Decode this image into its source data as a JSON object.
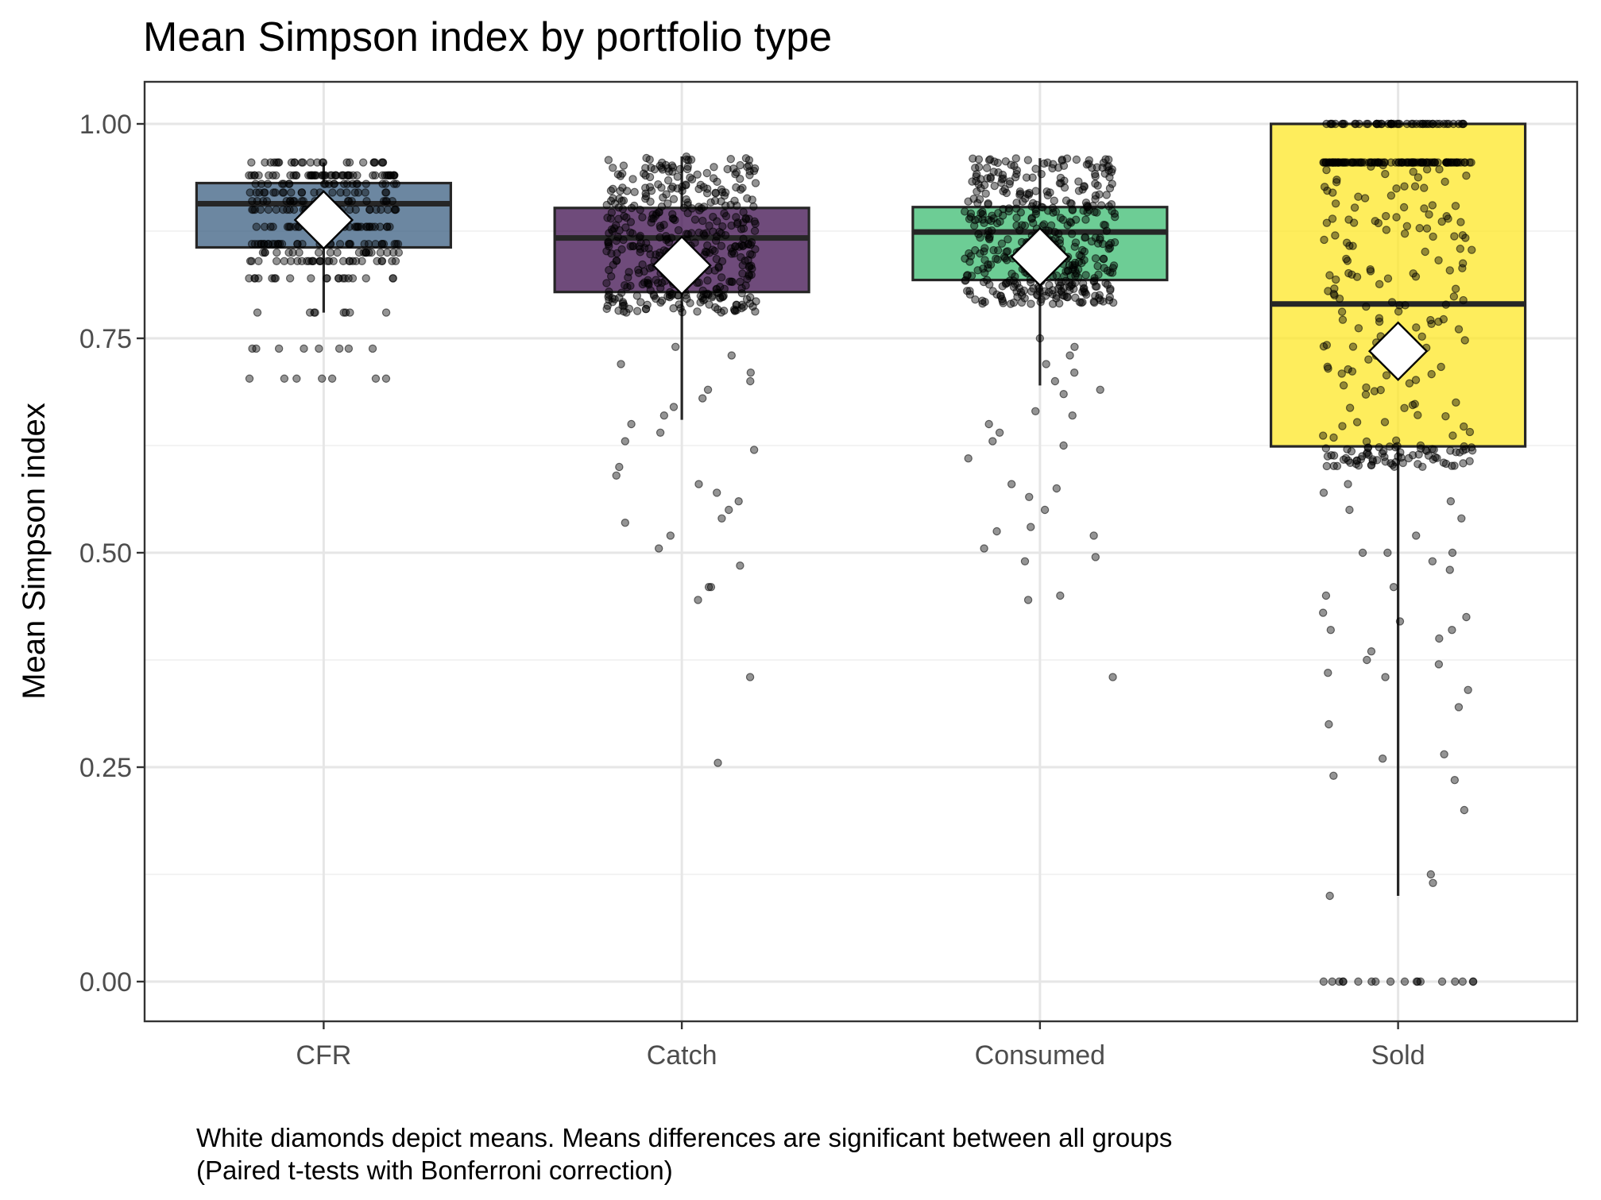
{
  "chart_data": {
    "type": "box",
    "title": "Mean Simpson index by portfolio type",
    "xlabel": "",
    "ylabel": "Mean Simpson index",
    "ylim": [
      -0.05,
      1.05
    ],
    "yticks": [
      0.0,
      0.25,
      0.5,
      0.75,
      1.0
    ],
    "ytick_labels": [
      "0.00",
      "0.25",
      "0.50",
      "0.75",
      "1.00"
    ],
    "categories": [
      "CFR",
      "Catch",
      "Consumed",
      "Sold"
    ],
    "grid": true,
    "legend": "none",
    "caption": [
      "White diamonds depict means. Means differences are significant between all groups",
      "(Paired t-tests with Bonferroni correction)"
    ],
    "boxes": [
      {
        "category": "CFR",
        "color": "#3b5f82",
        "q1": 0.856,
        "median": 0.907,
        "q3": 0.931,
        "whisker_low": 0.78,
        "whisker_high": 0.955,
        "mean": 0.888
      },
      {
        "category": "Catch",
        "color": "#3f0f4f",
        "q1": 0.804,
        "median": 0.867,
        "q3": 0.902,
        "whisker_low": 0.655,
        "whisker_high": 0.962,
        "mean": 0.835
      },
      {
        "category": "Consumed",
        "color": "#3cbc72",
        "q1": 0.818,
        "median": 0.874,
        "q3": 0.903,
        "whisker_low": 0.695,
        "whisker_high": 0.96,
        "mean": 0.845
      },
      {
        "category": "Sold",
        "color": "#fde725",
        "q1": 0.624,
        "median": 0.79,
        "q3": 1.0,
        "whisker_low": 0.1,
        "whisker_high": 1.0,
        "mean": 0.735
      }
    ],
    "points": [
      {
        "category": "CFR",
        "n": 320,
        "dense_low": 0.82,
        "dense_high": 0.955,
        "discrete_levels": [
          0.955,
          0.94,
          0.93,
          0.92,
          0.91,
          0.9,
          0.88,
          0.86,
          0.85,
          0.84,
          0.82,
          0.78,
          0.738,
          0.703
        ],
        "outliers": [
          0.78,
          0.78,
          0.78,
          0.78,
          0.78,
          0.78,
          0.78,
          0.78,
          0.738,
          0.738,
          0.738,
          0.738,
          0.738,
          0.738,
          0.738,
          0.738,
          0.703,
          0.703,
          0.703,
          0.703,
          0.703,
          0.703,
          0.703
        ]
      },
      {
        "category": "Catch",
        "n": 430,
        "dense_low": 0.78,
        "dense_high": 0.962,
        "outliers": [
          0.74,
          0.73,
          0.72,
          0.71,
          0.7,
          0.69,
          0.68,
          0.67,
          0.66,
          0.65,
          0.64,
          0.63,
          0.62,
          0.6,
          0.59,
          0.58,
          0.57,
          0.56,
          0.55,
          0.54,
          0.535,
          0.52,
          0.505,
          0.485,
          0.46,
          0.46,
          0.445,
          0.355,
          0.255
        ]
      },
      {
        "category": "Consumed",
        "n": 440,
        "dense_low": 0.79,
        "dense_high": 0.96,
        "outliers": [
          0.75,
          0.74,
          0.73,
          0.72,
          0.71,
          0.7,
          0.69,
          0.685,
          0.665,
          0.66,
          0.65,
          0.64,
          0.63,
          0.625,
          0.61,
          0.58,
          0.575,
          0.565,
          0.55,
          0.53,
          0.525,
          0.52,
          0.505,
          0.495,
          0.49,
          0.45,
          0.445,
          0.355
        ]
      },
      {
        "category": "Sold",
        "n": 330,
        "dense_low": 0.6,
        "dense_high": 0.955,
        "ones": 50,
        "zeros": 18,
        "spread_low": 0.1,
        "outliers": [
          0.58,
          0.57,
          0.56,
          0.55,
          0.54,
          0.52,
          0.5,
          0.5,
          0.5,
          0.49,
          0.48,
          0.46,
          0.45,
          0.43,
          0.425,
          0.42,
          0.41,
          0.41,
          0.4,
          0.385,
          0.375,
          0.37,
          0.36,
          0.355,
          0.34,
          0.32,
          0.3,
          0.265,
          0.26,
          0.24,
          0.235,
          0.2,
          0.125,
          0.115,
          0.1
        ]
      }
    ]
  }
}
